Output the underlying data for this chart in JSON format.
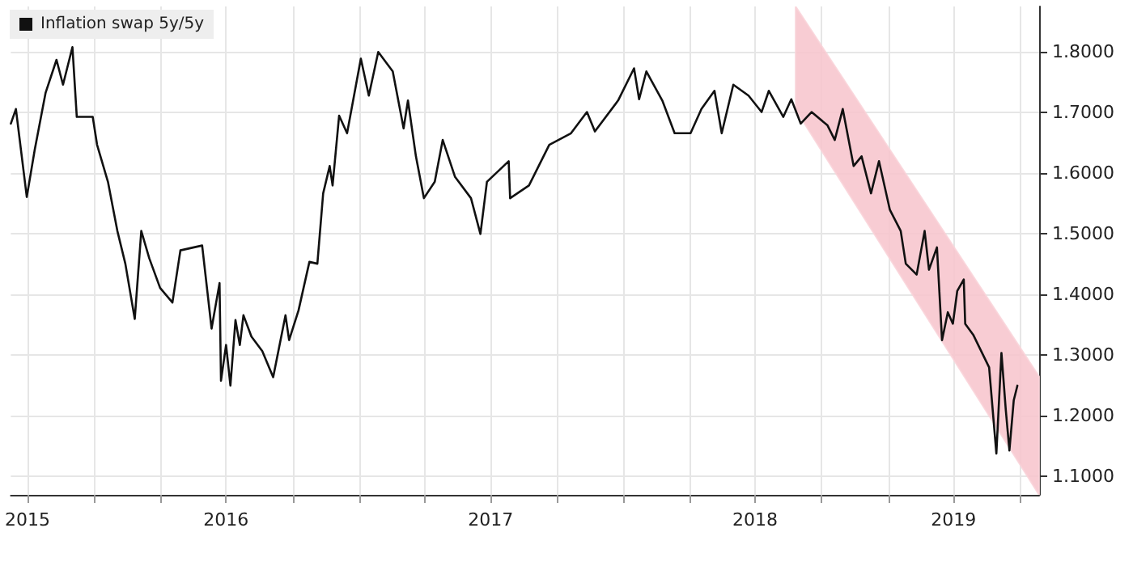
{
  "chart_data": {
    "type": "line",
    "x": [
      "2015-09-08",
      "2015-09-15",
      "2015-09-30",
      "2015-10-11",
      "2015-10-26",
      "2015-11-10",
      "2015-11-19",
      "2015-12-02",
      "2015-12-08",
      "2015-12-30",
      "2016-01-05",
      "2016-01-20",
      "2016-02-02",
      "2016-02-13",
      "2016-02-26",
      "2016-03-06",
      "2016-03-17",
      "2016-04-01",
      "2016-04-18",
      "2016-04-29",
      "2016-05-29",
      "2016-06-11",
      "2016-06-22",
      "2016-06-24",
      "2016-07-01",
      "2016-07-07",
      "2016-07-14",
      "2016-07-20",
      "2016-07-25",
      "2016-08-05",
      "2016-08-20",
      "2016-09-04",
      "2016-09-21",
      "2016-09-26",
      "2016-10-09",
      "2016-10-24",
      "2016-11-04",
      "2016-11-12",
      "2016-11-21",
      "2016-11-25",
      "2016-12-04",
      "2016-12-15",
      "2017-01-03",
      "2017-01-14",
      "2017-01-27",
      "2017-02-16",
      "2017-03-03",
      "2017-03-09",
      "2017-03-20",
      "2017-03-31",
      "2017-04-15",
      "2017-04-26",
      "2017-05-13",
      "2017-06-04",
      "2017-06-17",
      "2017-06-26",
      "2017-07-26",
      "2017-07-28",
      "2017-08-23",
      "2017-09-20",
      "2017-10-20",
      "2017-11-11",
      "2017-11-22",
      "2017-12-24",
      "2018-01-15",
      "2018-01-22",
      "2018-02-01",
      "2018-02-23",
      "2018-03-12",
      "2018-04-03",
      "2018-04-18",
      "2018-05-06",
      "2018-05-16",
      "2018-06-01",
      "2018-06-22",
      "2018-07-10",
      "2018-07-20",
      "2018-08-09",
      "2018-08-20",
      "2018-09-02",
      "2018-09-17",
      "2018-10-09",
      "2018-10-19",
      "2018-10-30",
      "2018-11-14",
      "2018-11-25",
      "2018-12-08",
      "2018-12-19",
      "2019-01-03",
      "2019-01-18",
      "2019-01-25",
      "2019-02-09",
      "2019-02-20",
      "2019-02-26",
      "2019-03-09",
      "2019-03-16",
      "2019-03-24",
      "2019-03-31",
      "2019-04-06",
      "2019-04-15",
      "2019-04-17",
      "2019-04-28",
      "2019-05-09",
      "2019-05-20",
      "2019-05-30",
      "2019-06-06",
      "2019-06-12",
      "2019-06-17",
      "2019-06-23",
      "2019-06-28"
    ],
    "series": [
      {
        "name": "Inflation swap 5y/5y",
        "color": "#111111",
        "values": [
          1.682,
          1.706,
          1.561,
          1.639,
          1.733,
          1.787,
          1.746,
          1.808,
          1.693,
          1.693,
          1.647,
          1.586,
          1.505,
          1.451,
          1.36,
          1.505,
          1.46,
          1.411,
          1.387,
          1.473,
          1.481,
          1.344,
          1.419,
          1.258,
          1.317,
          1.25,
          1.358,
          1.317,
          1.366,
          1.331,
          1.307,
          1.264,
          1.366,
          1.325,
          1.374,
          1.454,
          1.451,
          1.567,
          1.612,
          1.58,
          1.695,
          1.666,
          1.789,
          1.728,
          1.8,
          1.768,
          1.674,
          1.72,
          1.628,
          1.559,
          1.586,
          1.655,
          1.594,
          1.559,
          1.5,
          1.586,
          1.62,
          1.559,
          1.58,
          1.647,
          1.666,
          1.701,
          1.669,
          1.72,
          1.773,
          1.722,
          1.768,
          1.72,
          1.666,
          1.666,
          1.706,
          1.736,
          1.666,
          1.746,
          1.728,
          1.701,
          1.736,
          1.693,
          1.722,
          1.682,
          1.701,
          1.679,
          1.655,
          1.706,
          1.612,
          1.628,
          1.567,
          1.62,
          1.54,
          1.505,
          1.451,
          1.433,
          1.505,
          1.441,
          1.478,
          1.325,
          1.371,
          1.352,
          1.406,
          1.425,
          1.352,
          1.334,
          1.307,
          1.28,
          1.138,
          1.304,
          1.21,
          1.143,
          1.226,
          1.25
        ]
      },
      {
        "color": "#f7c3cb",
        "x": [
          "2018-08-26",
          "2019-07-28"
        ],
        "values": [
          null,
          null
        ],
        "lower": [
          1.705,
          1.07
        ],
        "upper": [
          1.875,
          1.265
        ]
      }
    ],
    "xlim": [
      "2015-09-08",
      "2019-07-28"
    ],
    "xticks": [
      {
        "value": "2015-10-01",
        "label": "2015"
      },
      {
        "value": "2016-01-01",
        "label": null
      },
      {
        "value": "2016-04-01",
        "label": null
      },
      {
        "value": "2016-07-01",
        "label": "2016"
      },
      {
        "value": "2016-10-01",
        "label": null
      },
      {
        "value": "2017-01-01",
        "label": null
      },
      {
        "value": "2017-04-01",
        "label": null
      },
      {
        "value": "2017-07-01",
        "label": "2017"
      },
      {
        "value": "2017-10-01",
        "label": null
      },
      {
        "value": "2018-01-01",
        "label": null
      },
      {
        "value": "2018-04-01",
        "label": null
      },
      {
        "value": "2018-07-01",
        "label": "2018"
      },
      {
        "value": "2018-10-01",
        "label": null
      },
      {
        "value": "2019-01-01",
        "label": null
      },
      {
        "value": "2019-04-01",
        "label": "2019"
      },
      {
        "value": "2019-07-01",
        "label": null
      }
    ],
    "ylim": [
      1.07,
      1.875
    ],
    "yticks": [
      {
        "value": 1.1,
        "label": "1.1000"
      },
      {
        "value": 1.2,
        "label": "1.2000"
      },
      {
        "value": 1.3,
        "label": "1.3000"
      },
      {
        "value": 1.4,
        "label": "1.4000"
      },
      {
        "value": 1.5,
        "label": "1.5000"
      },
      {
        "value": 1.6,
        "label": "1.6000"
      },
      {
        "value": 1.7,
        "label": "1.7000"
      },
      {
        "value": 1.8,
        "label": "1.8000"
      }
    ],
    "grid": true,
    "legend": "top left",
    "marker": "none",
    "line_style": "solid"
  }
}
